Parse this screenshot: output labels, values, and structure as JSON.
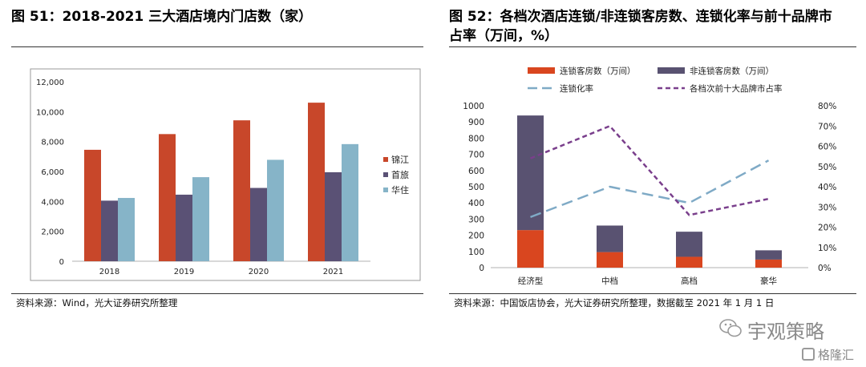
{
  "left": {
    "title": "图 51：2018-2021 三大酒店境内门店数（家）",
    "source": "资料来源：Wind，光大证券研究所整理"
  },
  "right": {
    "title_line1": "图 52：各档次酒店连锁/非连锁客房数、连锁化率与前十品牌市",
    "title_line2": "占率（万间，%）",
    "source": "资料来源：中国饭店协会，光大证券研究所整理，数据截至 2021 年 1 月 1 日"
  },
  "watermark": {
    "text1": "宇观策略",
    "text2": "格隆汇"
  },
  "colors": {
    "jinjiang": "#C8472A",
    "shoulv": "#5A5175",
    "huazhu": "#86B4C8",
    "chain_bar": "#D9461F",
    "nonchain_bar": "#595271",
    "chain_rate_line": "#7FAAC6",
    "top10_line": "#7A3F8C"
  },
  "chart_data": [
    {
      "type": "bar",
      "categories": [
        "2018",
        "2019",
        "2020",
        "2021"
      ],
      "series": [
        {
          "name": "锦江",
          "values": [
            7450,
            8500,
            9420,
            10600
          ]
        },
        {
          "name": "首旅",
          "values": [
            4050,
            4450,
            4900,
            5950
          ]
        },
        {
          "name": "华住",
          "values": [
            4230,
            5620,
            6780,
            7830
          ]
        }
      ],
      "ylim": [
        0,
        12000
      ],
      "yticks": [
        "0",
        "2,000",
        "4,000",
        "6,000",
        "8,000",
        "10,000",
        "12,000"
      ],
      "legend_position": "right",
      "grid": false
    },
    {
      "type": "bar",
      "categories": [
        "经济型",
        "中档",
        "高档",
        "豪华"
      ],
      "series": [
        {
          "name": "连锁客房数（万间）",
          "kind": "stacked-bar",
          "values": [
            232,
            96,
            67,
            50
          ]
        },
        {
          "name": "非连锁客房数（万间）",
          "kind": "stacked-bar",
          "values": [
            708,
            164,
            155,
            57
          ]
        },
        {
          "name": "连锁化率",
          "kind": "line",
          "axis": "right",
          "values": [
            25,
            40,
            32,
            53
          ]
        },
        {
          "name": "各档次前十大品牌市占率",
          "kind": "line",
          "axis": "right",
          "values": [
            54,
            70,
            26,
            34
          ]
        }
      ],
      "ylim": [
        0,
        1000
      ],
      "yticks": [
        "0",
        "100",
        "200",
        "300",
        "400",
        "500",
        "600",
        "700",
        "800",
        "900",
        "1000"
      ],
      "y2lim": [
        0,
        80
      ],
      "y2ticks": [
        "0%",
        "10%",
        "20%",
        "30%",
        "40%",
        "50%",
        "60%",
        "70%",
        "80%"
      ],
      "legend_position": "top",
      "grid": false
    }
  ]
}
